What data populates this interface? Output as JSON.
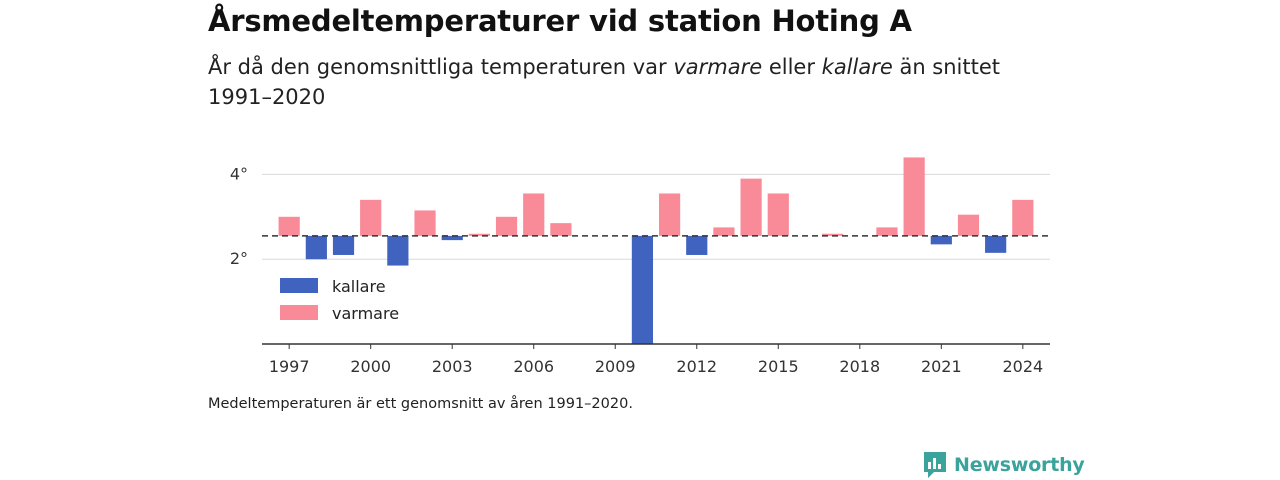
{
  "title": "Årsmedeltemperaturer vid station Hoting A",
  "subtitle": {
    "part1": "År då den genomsnittliga temperaturen var ",
    "warmer": "varmare",
    "part2": " eller ",
    "colder": "kallare",
    "part3": " än snittet 1991–2020"
  },
  "footnote": "Medeltemperaturen är ett genomsnitt av åren 1991–2020.",
  "brand": "Newsworthy",
  "colors": {
    "warmer": "#f98a97",
    "colder": "#3f63bf",
    "brand": "#3aa39b",
    "grid": "#d9d9d9",
    "baseline": "#333333"
  },
  "chart_data": {
    "type": "bar",
    "baseline": 2.55,
    "ylim": [
      0,
      5
    ],
    "xlim": [
      1996,
      2025
    ],
    "yticks": [
      {
        "value": 2,
        "label": "2°"
      },
      {
        "value": 4,
        "label": "4°"
      }
    ],
    "xticks": [
      1997,
      2000,
      2003,
      2006,
      2009,
      2012,
      2015,
      2018,
      2021,
      2024
    ],
    "legend": [
      {
        "key": "colder",
        "label": "kallare"
      },
      {
        "key": "warmer",
        "label": "varmare"
      }
    ],
    "legend_position": "bottom-left",
    "grid": true,
    "values": [
      {
        "year": 1997,
        "value": 3.0
      },
      {
        "year": 1998,
        "value": 2.0
      },
      {
        "year": 1999,
        "value": 2.1
      },
      {
        "year": 2000,
        "value": 3.4
      },
      {
        "year": 2001,
        "value": 1.85
      },
      {
        "year": 2002,
        "value": 3.15
      },
      {
        "year": 2003,
        "value": 2.45
      },
      {
        "year": 2004,
        "value": 2.6
      },
      {
        "year": 2005,
        "value": 3.0
      },
      {
        "year": 2006,
        "value": 3.55
      },
      {
        "year": 2007,
        "value": 2.85
      },
      {
        "year": 2010,
        "value": 0.0
      },
      {
        "year": 2011,
        "value": 3.55
      },
      {
        "year": 2012,
        "value": 2.1
      },
      {
        "year": 2013,
        "value": 2.75
      },
      {
        "year": 2014,
        "value": 3.9
      },
      {
        "year": 2015,
        "value": 3.55
      },
      {
        "year": 2017,
        "value": 2.6
      },
      {
        "year": 2019,
        "value": 2.75
      },
      {
        "year": 2020,
        "value": 4.4
      },
      {
        "year": 2021,
        "value": 2.35
      },
      {
        "year": 2022,
        "value": 3.05
      },
      {
        "year": 2023,
        "value": 2.15
      },
      {
        "year": 2024,
        "value": 3.4
      }
    ]
  }
}
